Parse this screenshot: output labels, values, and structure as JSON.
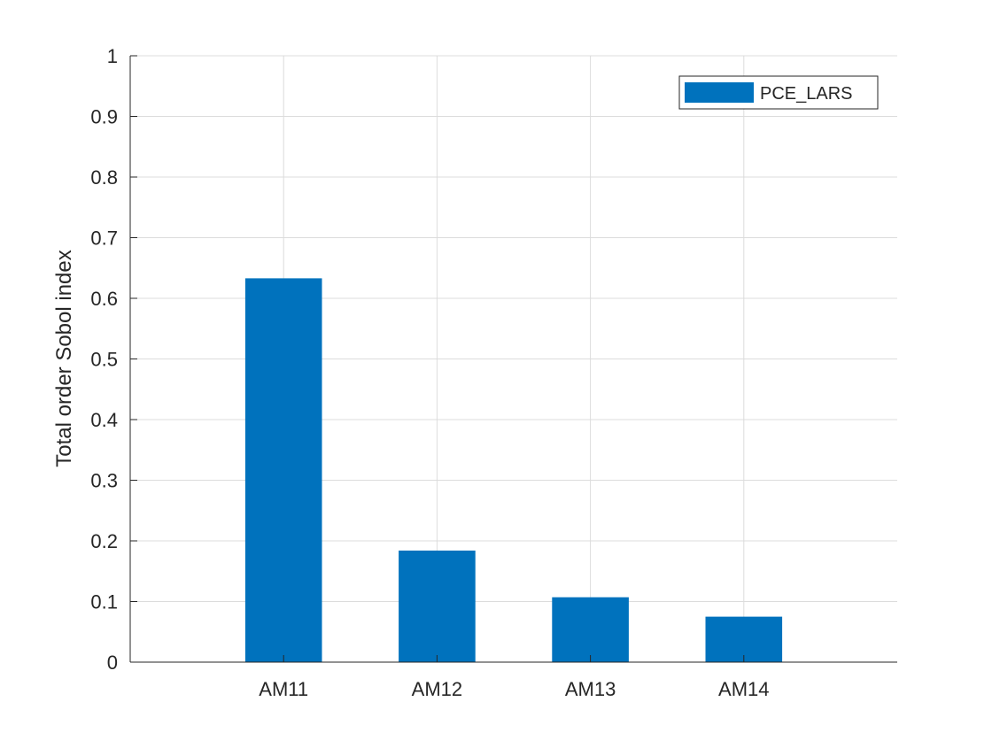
{
  "chart_data": {
    "type": "bar",
    "categories": [
      "AM11",
      "AM12",
      "AM13",
      "AM14"
    ],
    "series": [
      {
        "name": "PCE_LARS",
        "values": [
          0.633,
          0.184,
          0.107,
          0.075
        ],
        "color": "#0072BD"
      }
    ],
    "title": "",
    "xlabel": "",
    "ylabel": "Total order Sobol index",
    "ylim": [
      0,
      1
    ],
    "xlim": [
      0,
      5
    ],
    "yticks": [
      0,
      0.1,
      0.2,
      0.3,
      0.4,
      0.5,
      0.6,
      0.7,
      0.8,
      0.9,
      1
    ],
    "ytick_labels": [
      "0",
      "0.1",
      "0.2",
      "0.3",
      "0.4",
      "0.5",
      "0.6",
      "0.7",
      "0.8",
      "0.9",
      "1"
    ],
    "grid": true,
    "legend": {
      "position": "top-right",
      "entries": [
        "PCE_LARS"
      ]
    },
    "colors": {
      "bar": "#0072BD",
      "axis": "#262626",
      "grid": "#dcdcdc",
      "background": "#ffffff"
    }
  }
}
